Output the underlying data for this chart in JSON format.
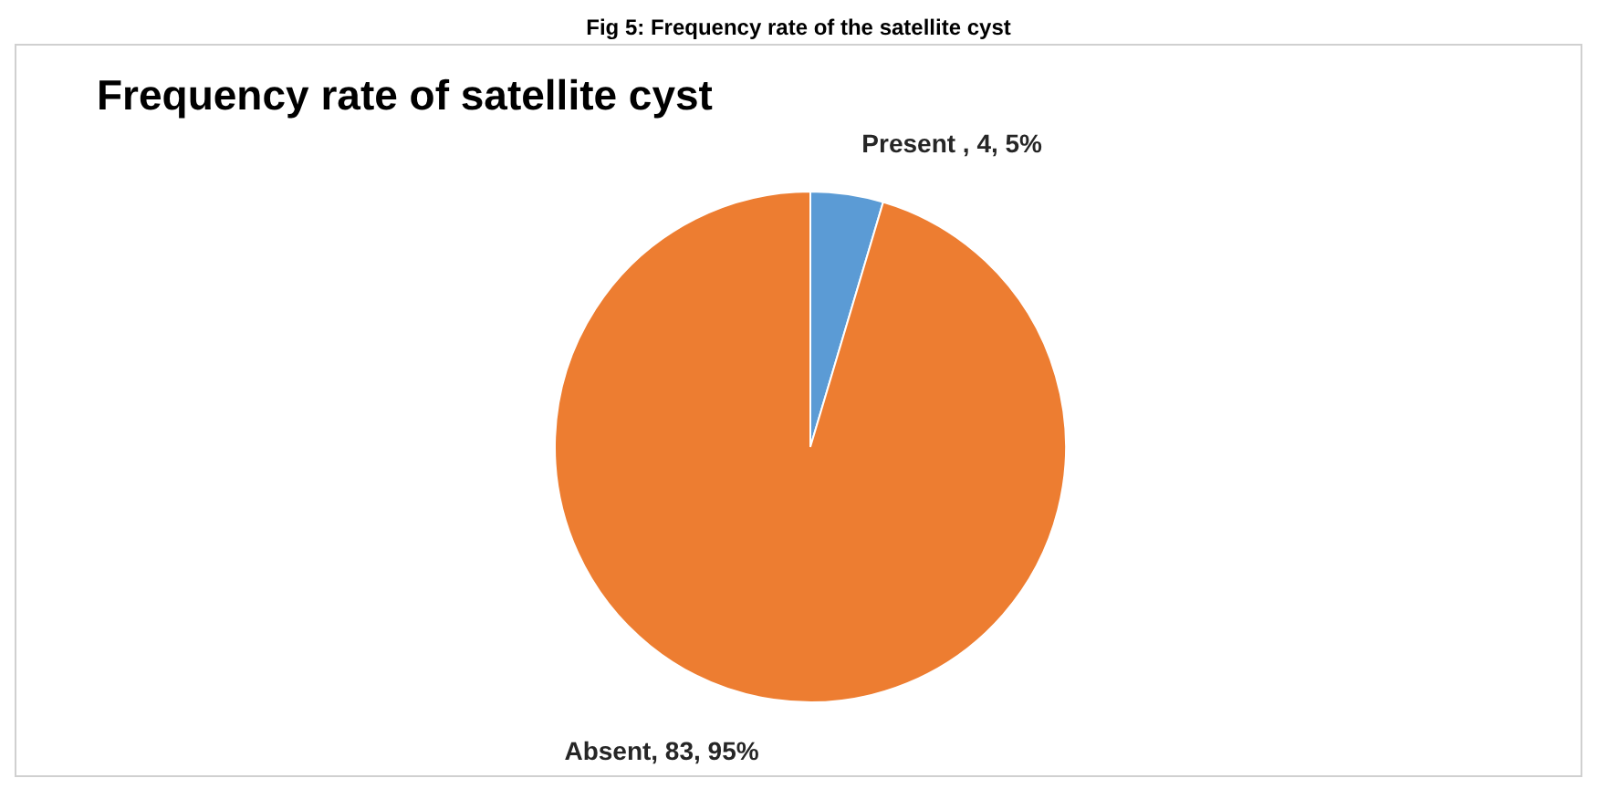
{
  "chart_data": {
    "type": "pie",
    "title": "Frequency rate of satellite cyst",
    "annotations": [
      "Fig 5: Frequency rate of the satellite cyst"
    ],
    "categories": [
      "Present ",
      "Absent"
    ],
    "values": [
      4,
      83
    ],
    "colors": [
      "#5b9bd5",
      "#ed7d31"
    ],
    "value_labels": [
      "4, 5%",
      "83, 95%"
    ],
    "legend": false
  }
}
